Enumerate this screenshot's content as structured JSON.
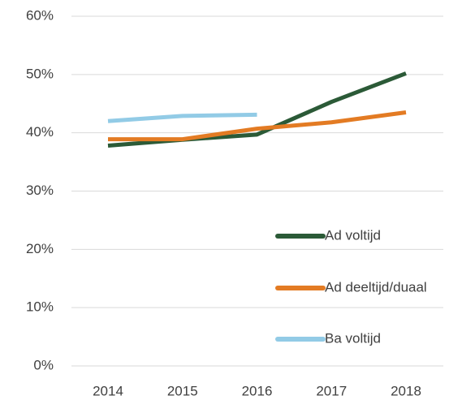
{
  "chart_data": {
    "type": "line",
    "categories": [
      "2014",
      "2015",
      "2016",
      "2017",
      "2018"
    ],
    "series": [
      {
        "name": "Ad voltijd",
        "color": "#2b5a37",
        "values": [
          37.8,
          38.8,
          39.7,
          45.3,
          50.2
        ]
      },
      {
        "name": "Ad deeltijd/duaal",
        "color": "#e37b23",
        "values": [
          38.9,
          38.9,
          40.7,
          41.8,
          43.5
        ]
      },
      {
        "name": "Ba voltijd",
        "color": "#92cbe6",
        "values": [
          42.0,
          42.9,
          43.1,
          null,
          null
        ]
      }
    ],
    "ylim": [
      0,
      60
    ],
    "yticks": [
      {
        "value": 0,
        "label": "0%"
      },
      {
        "value": 10,
        "label": "10%"
      },
      {
        "value": 20,
        "label": "20%"
      },
      {
        "value": 30,
        "label": "30%"
      },
      {
        "value": 40,
        "label": "40%"
      },
      {
        "value": 50,
        "label": "50%"
      },
      {
        "value": 60,
        "label": "60%"
      }
    ],
    "grid": true,
    "legend": "right"
  }
}
